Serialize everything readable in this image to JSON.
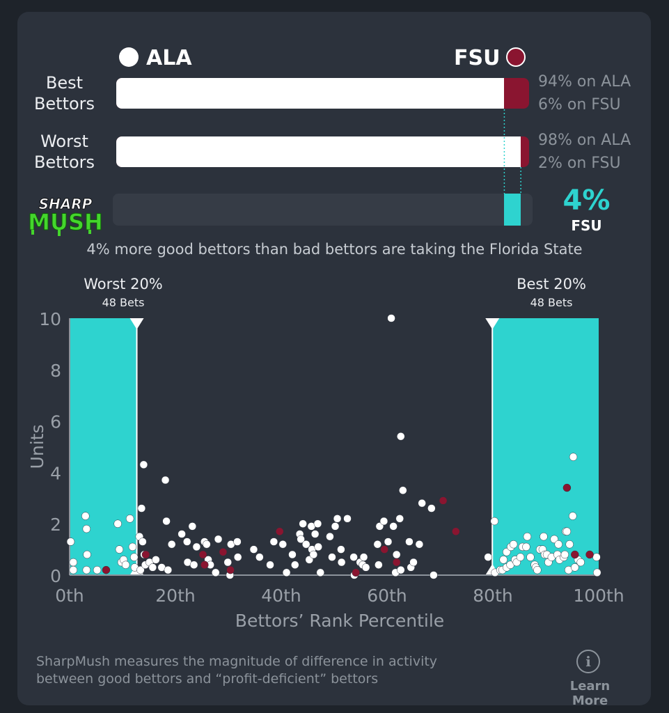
{
  "header": {
    "team_left": "ALA",
    "team_right": "FSU",
    "colors": {
      "ala": "#ffffff",
      "fsu": "#8a1530",
      "accent": "#2ed3cf"
    }
  },
  "rows": [
    {
      "label_line1": "Best",
      "label_line2": "Bettors",
      "ala_share": 94,
      "fsu_share": 6,
      "text_ala": "94% on ALA",
      "text_fsu": "6% on FSU"
    },
    {
      "label_line1": "Worst",
      "label_line2": "Bettors",
      "ala_share": 98,
      "fsu_share": 2,
      "text_ala": "98% on ALA",
      "text_fsu": "2% on FSU"
    }
  ],
  "sharpmush": {
    "logo_line1": "SHARP",
    "logo_line2": "MUSH",
    "value": 4,
    "value_text": "4%",
    "team": "FSU",
    "caption": "4% more good bettors than bad bettors are taking the Florida State"
  },
  "chart_data": {
    "type": "scatter",
    "xlabel": "Bettors’ Rank Percentile",
    "ylabel": "Units",
    "xlim": [
      0,
      100
    ],
    "ylim": [
      0,
      10
    ],
    "x_ticks": [
      {
        "value": 0,
        "label": "0th"
      },
      {
        "value": 20,
        "label": "20th"
      },
      {
        "value": 40,
        "label": "40th"
      },
      {
        "value": 60,
        "label": "60th"
      },
      {
        "value": 80,
        "label": "80th"
      },
      {
        "value": 100,
        "label": "100th"
      }
    ],
    "y_ticks": [
      {
        "value": 0,
        "label": "0"
      },
      {
        "value": 2,
        "label": "2"
      },
      {
        "value": 4,
        "label": "4"
      },
      {
        "value": 6,
        "label": "6"
      },
      {
        "value": 8,
        "label": "8"
      },
      {
        "value": 10,
        "label": "10"
      }
    ],
    "regions": [
      {
        "title": "Worst 20%",
        "subtitle": "48 Bets",
        "x_start": 0,
        "x_end": 12.7
      },
      {
        "title": "Best 20%",
        "subtitle": "48 Bets",
        "x_start": 79.9,
        "x_end": 100
      }
    ],
    "series": [
      {
        "team": "ALA",
        "color": "#ffffff",
        "points": [
          [
            0.2,
            1.3
          ],
          [
            0.7,
            0.5
          ],
          [
            0.7,
            0.2
          ],
          [
            3.0,
            2.3
          ],
          [
            3.2,
            1.8
          ],
          [
            3.3,
            0.8
          ],
          [
            3.2,
            0.2
          ],
          [
            5.2,
            0.2
          ],
          [
            9.1,
            2.0
          ],
          [
            9.4,
            1.0
          ],
          [
            9.8,
            0.5
          ],
          [
            10.2,
            0.6
          ],
          [
            10.6,
            0.4
          ],
          [
            11.4,
            2.2
          ],
          [
            11.9,
            1.1
          ],
          [
            12.2,
            0.7
          ],
          [
            12.3,
            0.3
          ],
          [
            13.2,
            1.5
          ],
          [
            13.4,
            0.2
          ],
          [
            13.6,
            2.6
          ],
          [
            13.8,
            1.3
          ],
          [
            14.1,
            0.8
          ],
          [
            14.3,
            0.4
          ],
          [
            14.0,
            4.3
          ],
          [
            15.1,
            0.5
          ],
          [
            15.7,
            0.3
          ],
          [
            16.3,
            0.6
          ],
          [
            17.4,
            0.3
          ],
          [
            18.1,
            3.7
          ],
          [
            18.3,
            2.1
          ],
          [
            18.6,
            0.2
          ],
          [
            19.3,
            1.2
          ],
          [
            21.2,
            1.6
          ],
          [
            22.2,
            1.3
          ],
          [
            22.3,
            0.5
          ],
          [
            23.2,
            1.9
          ],
          [
            23.5,
            0.4
          ],
          [
            24.0,
            1.1
          ],
          [
            25.5,
            1.3
          ],
          [
            25.9,
            1.2
          ],
          [
            26.2,
            0.6
          ],
          [
            26.6,
            0.4
          ],
          [
            27.6,
            0.1
          ],
          [
            28.1,
            1.4
          ],
          [
            29.9,
            0.5
          ],
          [
            30.3,
            0.0
          ],
          [
            30.5,
            1.2
          ],
          [
            31.7,
            1.3
          ],
          [
            31.8,
            0.7
          ],
          [
            34.8,
            1.0
          ],
          [
            35.9,
            0.7
          ],
          [
            37.9,
            0.4
          ],
          [
            38.6,
            1.3
          ],
          [
            40.3,
            1.2
          ],
          [
            41.0,
            0.1
          ],
          [
            42.1,
            0.8
          ],
          [
            42.6,
            0.4
          ],
          [
            43.5,
            1.6
          ],
          [
            43.7,
            1.4
          ],
          [
            44.1,
            2.0
          ],
          [
            44.7,
            1.2
          ],
          [
            45.3,
            0.6
          ],
          [
            45.7,
            1.9
          ],
          [
            45.8,
            1.0
          ],
          [
            46.1,
            0.8
          ],
          [
            46.4,
            1.6
          ],
          [
            46.9,
            2.0
          ],
          [
            47.0,
            1.1
          ],
          [
            47.4,
            0.1
          ],
          [
            49.2,
            1.5
          ],
          [
            49.6,
            0.7
          ],
          [
            50.2,
            1.9
          ],
          [
            50.6,
            2.2
          ],
          [
            51.3,
            1.0
          ],
          [
            51.4,
            0.5
          ],
          [
            52.5,
            2.2
          ],
          [
            53.7,
            0.7
          ],
          [
            53.8,
            0.0
          ],
          [
            54.9,
            0.5
          ],
          [
            55.4,
            0.4
          ],
          [
            55.6,
            0.7
          ],
          [
            56.0,
            0.3
          ],
          [
            58.2,
            1.2
          ],
          [
            58.4,
            0.4
          ],
          [
            58.6,
            1.9
          ],
          [
            59.4,
            2.1
          ],
          [
            60.2,
            1.3
          ],
          [
            60.8,
            10.0
          ],
          [
            61.2,
            1.9
          ],
          [
            61.6,
            0.1
          ],
          [
            61.8,
            0.8
          ],
          [
            62.4,
            2.2
          ],
          [
            62.6,
            0.2
          ],
          [
            62.6,
            5.4
          ],
          [
            63.0,
            3.3
          ],
          [
            64.2,
            1.3
          ],
          [
            64.5,
            0.3
          ],
          [
            65.0,
            0.5
          ],
          [
            66.1,
            1.2
          ],
          [
            66.6,
            2.8
          ],
          [
            68.4,
            2.6
          ],
          [
            68.8,
            0.0
          ],
          [
            79.1,
            0.7
          ],
          [
            80.3,
            2.1
          ],
          [
            80.4,
            0.1
          ],
          [
            81.4,
            0.2
          ],
          [
            81.8,
            0.2
          ],
          [
            82.0,
            0.6
          ],
          [
            82.6,
            0.3
          ],
          [
            82.6,
            0.9
          ],
          [
            83.3,
            0.4
          ],
          [
            83.4,
            1.1
          ],
          [
            83.9,
            1.2
          ],
          [
            84.2,
            0.6
          ],
          [
            84.5,
            0.5
          ],
          [
            85.2,
            0.7
          ],
          [
            85.6,
            1.1
          ],
          [
            86.3,
            1.1
          ],
          [
            86.5,
            1.5
          ],
          [
            87.1,
            0.7
          ],
          [
            87.9,
            0.4
          ],
          [
            88.1,
            0.3
          ],
          [
            88.4,
            0.2
          ],
          [
            88.9,
            1.0
          ],
          [
            89.4,
            1.0
          ],
          [
            89.6,
            1.5
          ],
          [
            89.8,
            0.8
          ],
          [
            90.2,
            0.8
          ],
          [
            90.5,
            0.5
          ],
          [
            91.1,
            0.7
          ],
          [
            91.6,
            1.4
          ],
          [
            92.2,
            0.8
          ],
          [
            92.4,
            1.2
          ],
          [
            92.6,
            0.6
          ],
          [
            93.4,
            0.7
          ],
          [
            93.6,
            0.8
          ],
          [
            93.8,
            1.7
          ],
          [
            94.0,
            1.7
          ],
          [
            94.3,
            0.2
          ],
          [
            94.5,
            1.2
          ],
          [
            95.1,
            2.3
          ],
          [
            95.2,
            4.6
          ],
          [
            95.5,
            0.3
          ],
          [
            96.1,
            0.6
          ],
          [
            96.6,
            0.5
          ],
          [
            99.6,
            0.7
          ],
          [
            99.7,
            0.1
          ]
        ]
      },
      {
        "team": "FSU",
        "color": "#8a1530",
        "points": [
          [
            6.9,
            0.2
          ],
          [
            14.4,
            0.8
          ],
          [
            25.2,
            0.8
          ],
          [
            25.5,
            0.4
          ],
          [
            29.0,
            0.9
          ],
          [
            30.4,
            0.2
          ],
          [
            39.7,
            1.7
          ],
          [
            54.1,
            0.1
          ],
          [
            59.5,
            1.0
          ],
          [
            61.8,
            0.5
          ],
          [
            70.6,
            2.9
          ],
          [
            73.0,
            1.7
          ],
          [
            95.5,
            0.8
          ],
          [
            94.0,
            3.4
          ],
          [
            98.3,
            0.8
          ]
        ]
      }
    ]
  },
  "footer": {
    "text_line1": "SharpMush measures the magnitude of difference in activity",
    "text_line2": "between good bettors and “profit-deficient” bettors",
    "learn_more": "Learn More"
  }
}
